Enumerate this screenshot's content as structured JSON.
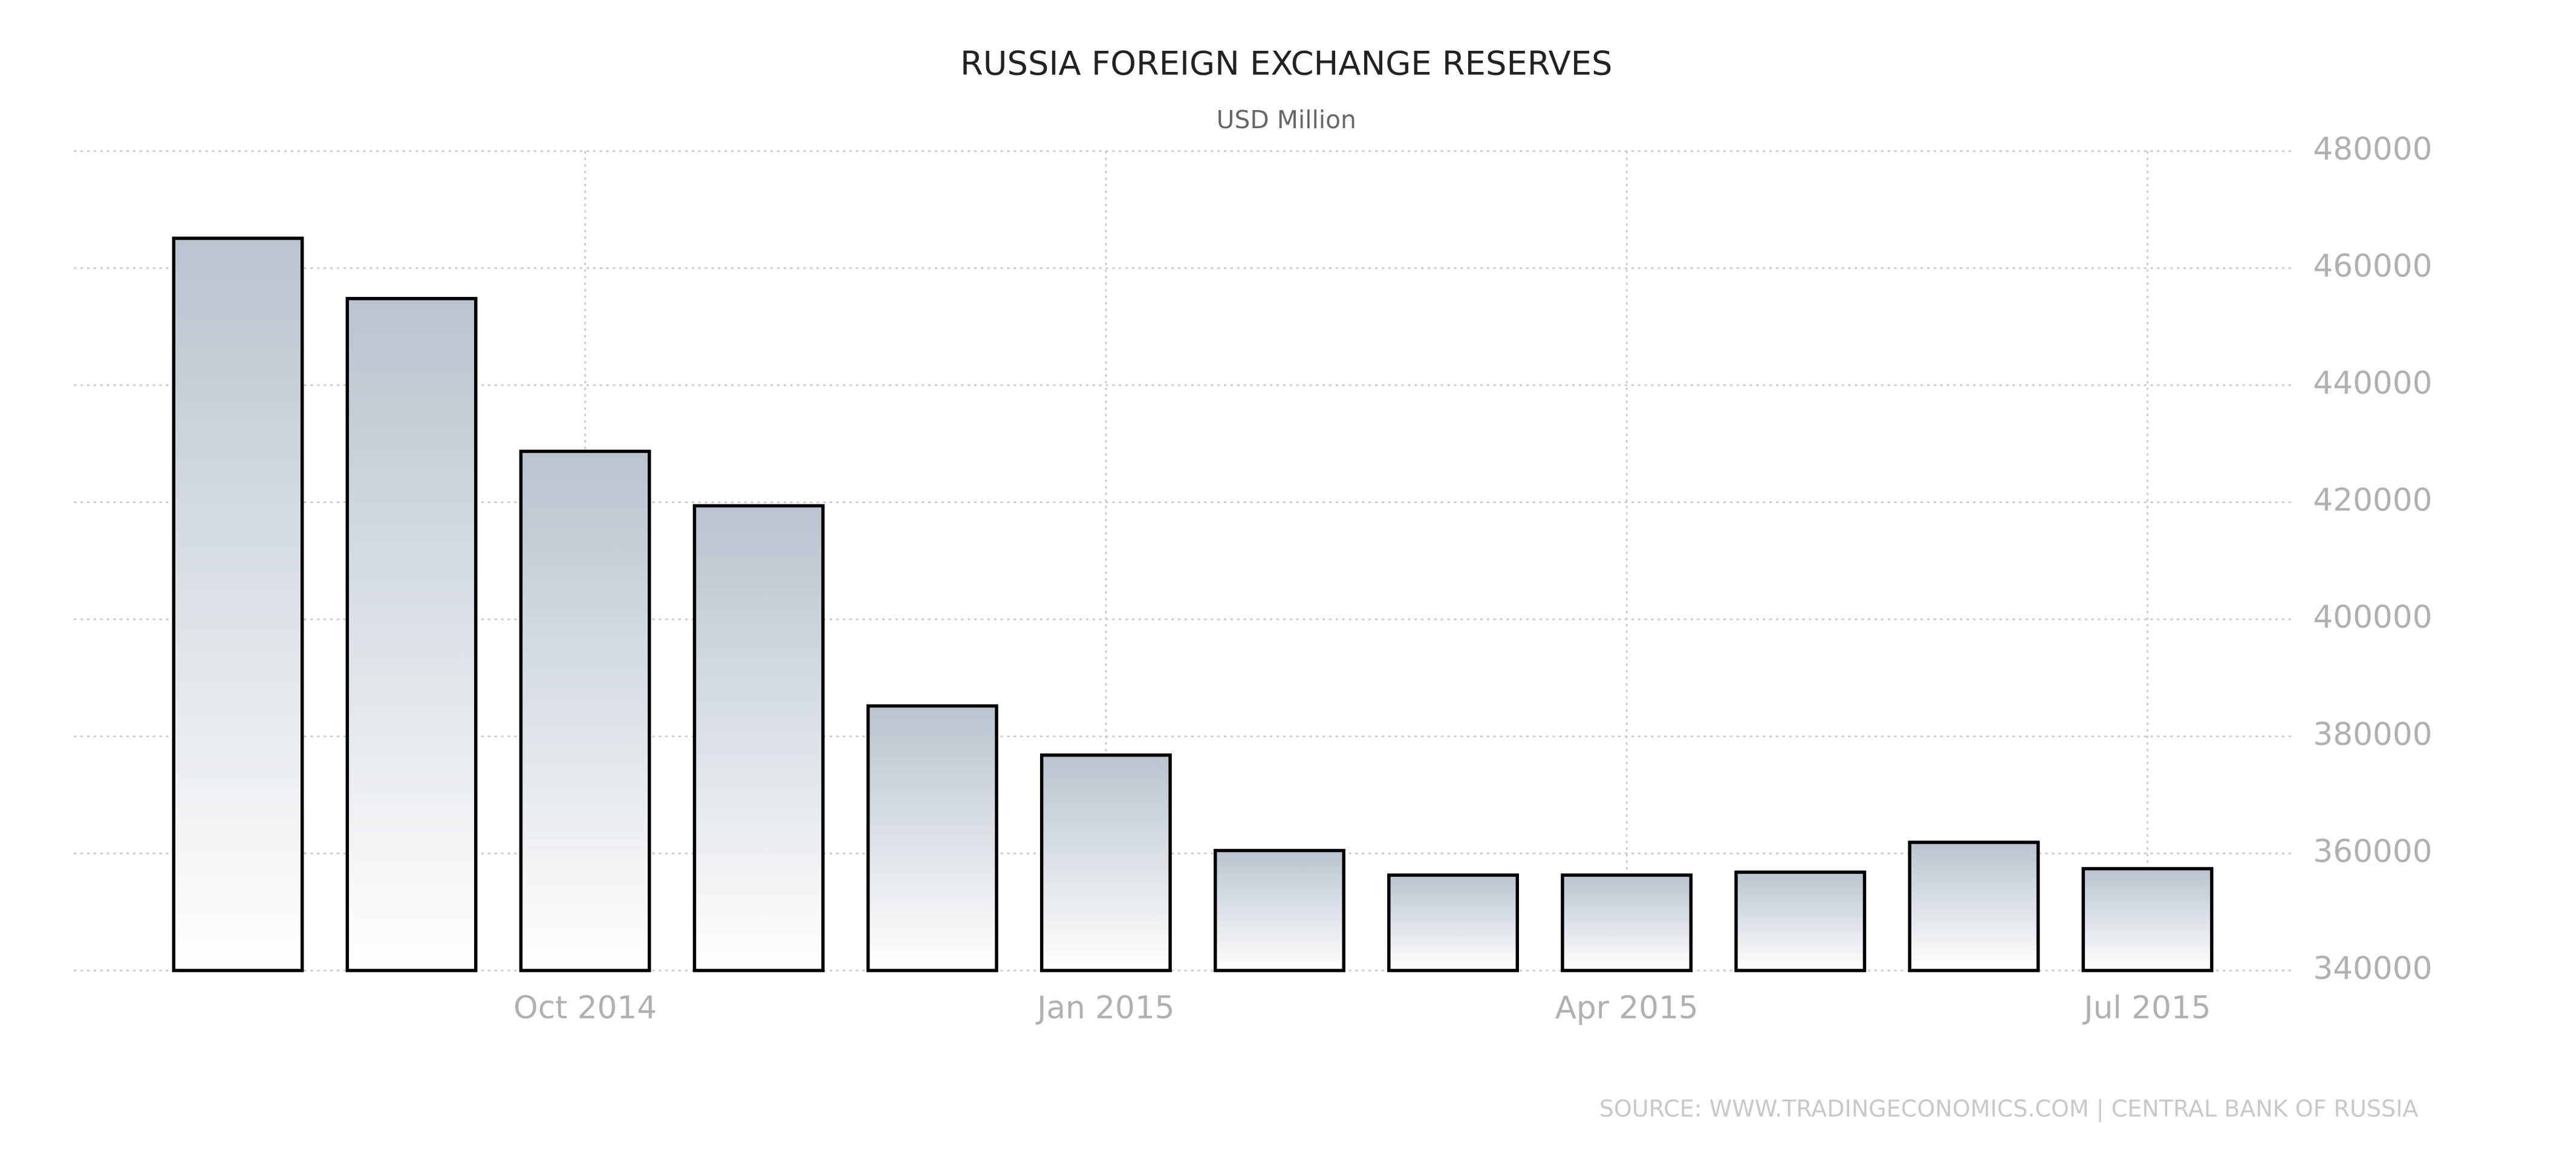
{
  "chart_data": {
    "type": "bar",
    "title": "RUSSIA FOREIGN EXCHANGE RESERVES",
    "subtitle": "USD Million",
    "source": "SOURCE: WWW.TRADINGECONOMICS.COM | CENTRAL BANK OF RUSSIA",
    "categories": [
      null,
      null,
      "Oct 2014",
      null,
      null,
      "Jan 2015",
      null,
      null,
      "Apr 2015",
      null,
      null,
      "Jul 2015"
    ],
    "values": [
      465100,
      454800,
      428700,
      419400,
      385200,
      376800,
      360500,
      356300,
      356300,
      356800,
      361900,
      357400
    ],
    "color": "#b9c4cf",
    "ylim": [
      340000,
      480000
    ],
    "yticks": [
      340000,
      360000,
      380000,
      400000,
      420000,
      440000,
      460000,
      480000
    ],
    "grid": true
  }
}
